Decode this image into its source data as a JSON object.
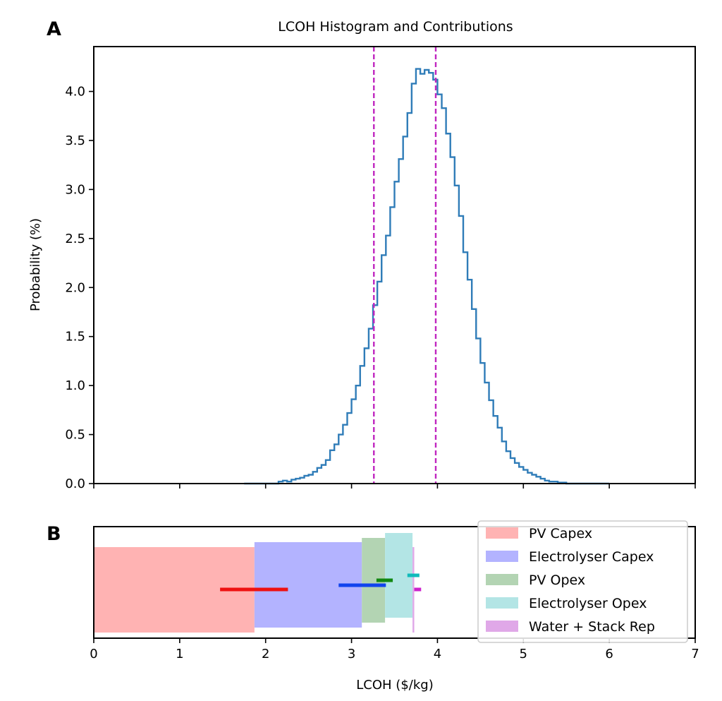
{
  "panels": {
    "a": "A",
    "b": "B"
  },
  "chart_data": [
    {
      "type": "step-histogram",
      "title": "LCOH Histogram and Contributions",
      "xlabel": "",
      "ylabel": "Probability (%)",
      "xlim": [
        0,
        7
      ],
      "ylim": [
        0,
        4.4
      ],
      "yticks": [
        "0.0",
        "0.5",
        "1.0",
        "1.5",
        "2.0",
        "2.5",
        "3.0",
        "3.5",
        "4.0"
      ],
      "grid": false,
      "line_color": "#2f7cb8",
      "bin_width": 0.05,
      "bin_start": 1.75,
      "values": [
        0,
        0,
        0,
        0,
        0,
        0,
        0,
        0,
        0.02,
        0.03,
        0.02,
        0.04,
        0.05,
        0.06,
        0.08,
        0.09,
        0.12,
        0.16,
        0.19,
        0.24,
        0.34,
        0.4,
        0.5,
        0.6,
        0.72,
        0.86,
        1.0,
        1.2,
        1.38,
        1.58,
        1.82,
        2.06,
        2.33,
        2.53,
        2.82,
        3.08,
        3.31,
        3.54,
        3.78,
        4.08,
        4.23,
        4.18,
        4.22,
        4.19,
        4.12,
        3.97,
        3.83,
        3.57,
        3.33,
        3.04,
        2.73,
        2.36,
        2.08,
        1.78,
        1.48,
        1.23,
        1.03,
        0.85,
        0.69,
        0.57,
        0.43,
        0.33,
        0.26,
        0.21,
        0.17,
        0.14,
        0.11,
        0.09,
        0.07,
        0.05,
        0.03,
        0.02,
        0.02,
        0.01,
        0.01,
        0,
        0,
        0,
        0,
        0,
        0,
        0,
        0,
        0,
        0
      ],
      "vlines": {
        "x": [
          3.26,
          3.98
        ],
        "color": "#c026c0",
        "style": "dashed"
      }
    },
    {
      "type": "waterfall-bar",
      "xlabel": "LCOH ($/kg)",
      "xlim": [
        0,
        7
      ],
      "xticks": [
        "0",
        "1",
        "2",
        "3",
        "4",
        "5",
        "6",
        "7"
      ],
      "legend_position": "top-right",
      "series": [
        {
          "name": "PV Capex",
          "start": 0,
          "end": 1.87,
          "fill": "#ffb3b3",
          "range": [
            1.47,
            2.26
          ],
          "range_color": "#ee1111"
        },
        {
          "name": "Electrolyser Capex",
          "start": 1.87,
          "end": 3.12,
          "fill": "#b3b3ff",
          "range": [
            2.85,
            3.4
          ],
          "range_color": "#1144ee"
        },
        {
          "name": "PV Opex",
          "start": 3.12,
          "end": 3.39,
          "fill": "#b3d4b3",
          "range": [
            3.29,
            3.48
          ],
          "range_color": "#118811"
        },
        {
          "name": "Electrolyser Opex",
          "start": 3.39,
          "end": 3.71,
          "fill": "#b3e5e5",
          "range": [
            3.65,
            3.79
          ],
          "range_color": "#11bbbb"
        },
        {
          "name": "Water + Stack Rep",
          "start": 3.71,
          "end": 3.73,
          "fill": "#e0a8e8",
          "range": [
            3.73,
            3.81
          ],
          "range_color": "#cc22cc"
        }
      ]
    }
  ]
}
